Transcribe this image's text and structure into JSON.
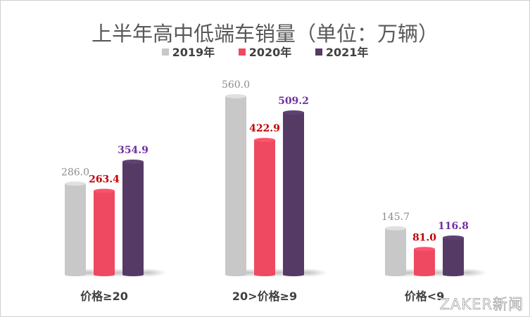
{
  "chart_data": {
    "type": "bar",
    "title": "上半年高中低端车销量（单位：万辆）",
    "categories": [
      "价格≥20",
      "20>价格≥9",
      "价格<9"
    ],
    "series": [
      {
        "name": "2019年",
        "values": [
          286.0,
          560.0,
          145.7
        ],
        "color": "#c8c8c8",
        "label_color": "#8c8c8c"
      },
      {
        "name": "2020年",
        "values": [
          263.4,
          422.9,
          81.0
        ],
        "color": "#ee4960",
        "label_color": "#c00000"
      },
      {
        "name": "2021年",
        "values": [
          354.9,
          509.2,
          116.8
        ],
        "color": "#553a66",
        "label_color": "#7030a0"
      }
    ],
    "ylim": [
      0,
      600
    ],
    "grid": false,
    "legend": "top-center"
  },
  "watermark": "ZAKER新闻"
}
